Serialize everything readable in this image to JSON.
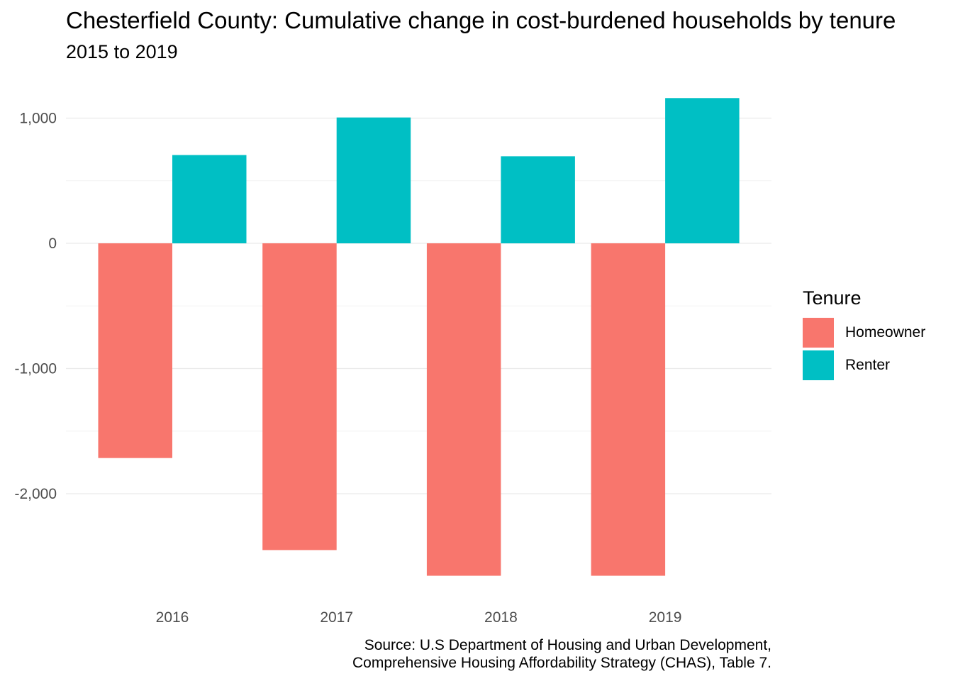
{
  "chart_data": {
    "type": "bar",
    "title": "Chesterfield County: Cumulative change in cost-burdened households by tenure",
    "subtitle": "2015 to 2019",
    "xlabel": "",
    "ylabel": "",
    "categories": [
      "2016",
      "2017",
      "2018",
      "2019"
    ],
    "series": [
      {
        "name": "Homeowner",
        "color": "#F8766D",
        "values": [
          -1715,
          -2450,
          -2655,
          -2655
        ]
      },
      {
        "name": "Renter",
        "color": "#00BFC4",
        "values": [
          705,
          1005,
          695,
          1160
        ]
      }
    ],
    "ylim": [
      -2800,
      1250
    ],
    "yticks": [
      1000,
      0,
      -1000,
      -2000
    ],
    "ytick_labels": [
      "1,000",
      "0",
      "-1,000",
      "-2,000"
    ],
    "grid": true,
    "legend": {
      "title": "Tenure",
      "position": "right"
    },
    "caption_lines": [
      "Source: U.S Department of Housing and Urban Development,",
      "Comprehensive Housing Affordability Strategy (CHAS), Table 7."
    ]
  }
}
